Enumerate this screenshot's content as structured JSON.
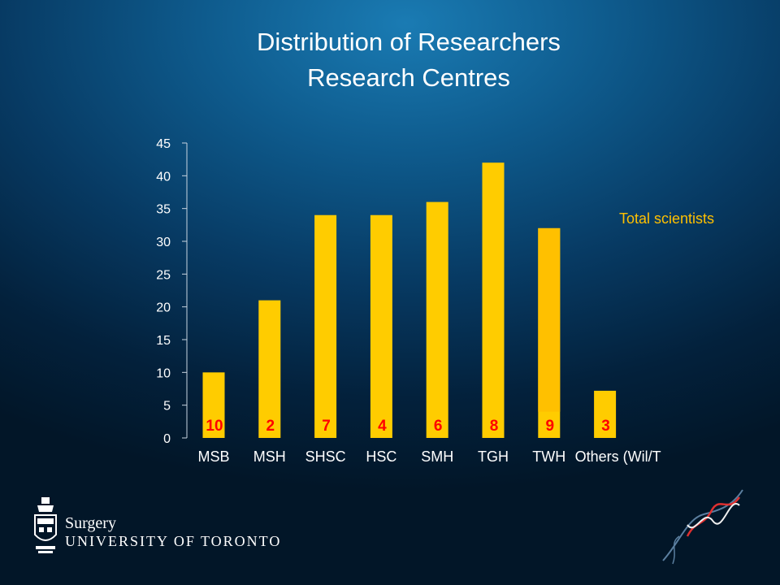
{
  "slide": {
    "title_line1": "Distribution of Researchers",
    "title_line2": "Research Centres",
    "department": "Surgery",
    "university": "UNIVERSITY OF TORONTO"
  },
  "colors": {
    "bar": "#ffcc00",
    "bar_top_segment": "#ffc000",
    "annotation": "#ff0000",
    "legend_text": "#ffc000",
    "axis_text": "#ffffff"
  },
  "chart_data": {
    "type": "bar",
    "title": "",
    "xlabel": "",
    "ylabel": "",
    "categories": [
      "MSB",
      "MSH",
      "SHSC",
      "HSC",
      "SMH",
      "TGH",
      "TWH",
      "Others (Wil/T"
    ],
    "series": [
      {
        "name": "Total scientists",
        "values": [
          10,
          21,
          34,
          34,
          36,
          42,
          32,
          7.2
        ]
      }
    ],
    "annotations": [
      "10",
      "2",
      "7",
      "4",
      "6",
      "8",
      "9",
      "3"
    ],
    "ylim": [
      0,
      45
    ],
    "yticks": [
      0,
      5,
      10,
      15,
      20,
      25,
      30,
      35,
      40,
      45
    ],
    "grid": false,
    "legend_text": "Total scientists"
  }
}
